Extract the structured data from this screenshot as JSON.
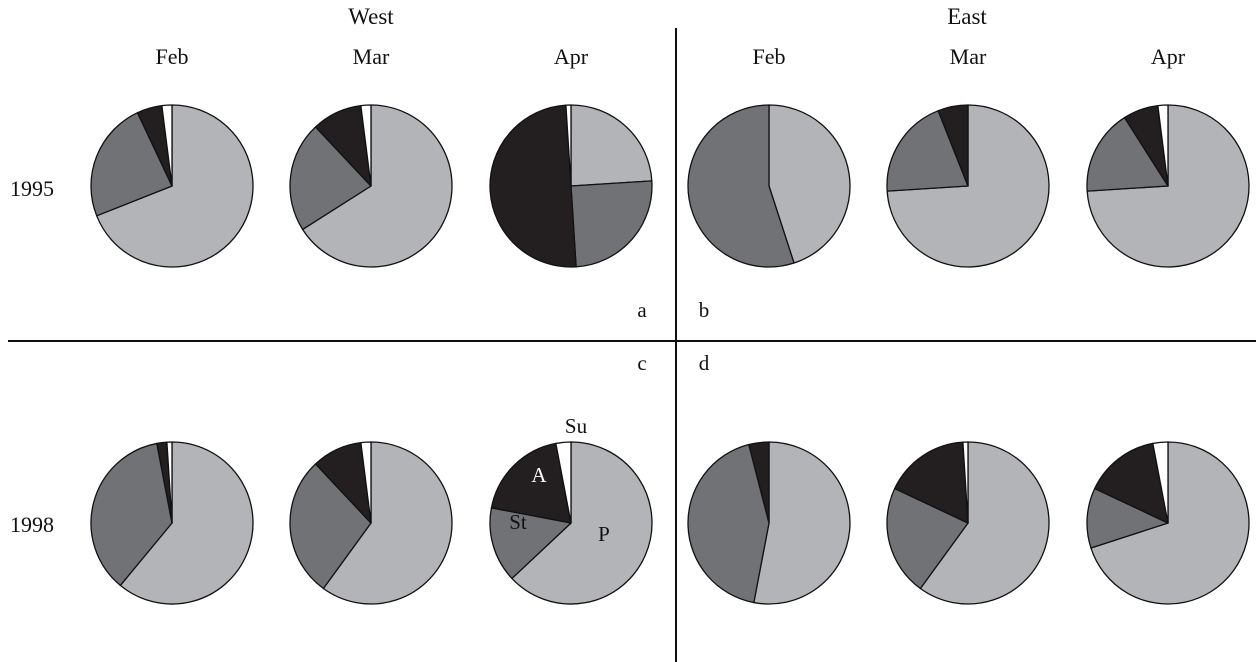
{
  "colors": {
    "P": "#b3b4b8",
    "St": "#717276",
    "A": "#231f20",
    "Su": "#ffffff",
    "edge": "#111111"
  },
  "headers": {
    "west": "West",
    "east": "East"
  },
  "months": [
    "Feb",
    "Mar",
    "Apr",
    "Feb",
    "Mar",
    "Apr"
  ],
  "years": [
    "1995",
    "1998"
  ],
  "panels": [
    "a",
    "b",
    "c",
    "d"
  ],
  "segment_labels": {
    "P": "P",
    "St": "St",
    "A": "A",
    "Su": "Su"
  },
  "chart_data": {
    "type": "pie",
    "category_order": [
      "P",
      "St",
      "A",
      "Su"
    ],
    "panels": [
      {
        "year": "1995",
        "region": "West",
        "month": "Feb",
        "values": {
          "P": 69,
          "St": 24,
          "A": 5,
          "Su": 2
        }
      },
      {
        "year": "1995",
        "region": "West",
        "month": "Mar",
        "values": {
          "P": 66,
          "St": 22,
          "A": 10,
          "Su": 2
        }
      },
      {
        "year": "1995",
        "region": "West",
        "month": "Apr",
        "values": {
          "P": 24,
          "St": 25,
          "A": 50,
          "Su": 1
        }
      },
      {
        "year": "1995",
        "region": "East",
        "month": "Feb",
        "values": {
          "P": 45,
          "St": 55,
          "A": 0,
          "Su": 0
        }
      },
      {
        "year": "1995",
        "region": "East",
        "month": "Mar",
        "values": {
          "P": 74,
          "St": 20,
          "A": 6,
          "Su": 0
        }
      },
      {
        "year": "1995",
        "region": "East",
        "month": "Apr",
        "values": {
          "P": 74,
          "St": 17,
          "A": 7,
          "Su": 2
        }
      },
      {
        "year": "1998",
        "region": "West",
        "month": "Feb",
        "values": {
          "P": 61,
          "St": 36,
          "A": 2,
          "Su": 1
        }
      },
      {
        "year": "1998",
        "region": "West",
        "month": "Mar",
        "values": {
          "P": 60,
          "St": 28,
          "A": 10,
          "Su": 2
        }
      },
      {
        "year": "1998",
        "region": "West",
        "month": "Apr",
        "values": {
          "P": 63,
          "St": 15,
          "A": 19,
          "Su": 3
        }
      },
      {
        "year": "1998",
        "region": "East",
        "month": "Feb",
        "values": {
          "P": 53,
          "St": 43,
          "A": 4,
          "Su": 0
        }
      },
      {
        "year": "1998",
        "region": "East",
        "month": "Mar",
        "values": {
          "P": 60,
          "St": 22,
          "A": 17,
          "Su": 1
        }
      },
      {
        "year": "1998",
        "region": "East",
        "month": "Apr",
        "values": {
          "P": 70,
          "St": 12,
          "A": 15,
          "Su": 3
        }
      }
    ]
  }
}
